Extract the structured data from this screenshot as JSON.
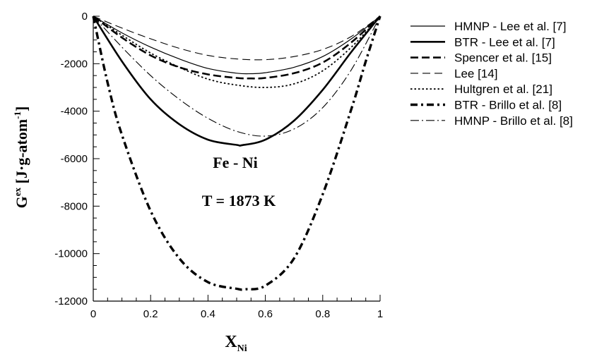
{
  "chart_data": {
    "type": "line",
    "xlabel": {
      "main": "X",
      "sub": "Ni"
    },
    "ylabel": {
      "main": "G",
      "sup": "ex",
      "unit_pre": " [J·g-atom",
      "unit_sup": "-1",
      "unit_post": "]"
    },
    "xlim": [
      0,
      1
    ],
    "ylim": [
      -12000,
      0
    ],
    "xticks": [
      0,
      0.2,
      0.4,
      0.6,
      0.8,
      1
    ],
    "xtick_labels": [
      "0",
      "0.2",
      "0.4",
      "0.6",
      "0.8",
      "1"
    ],
    "yticks": [
      0,
      -2000,
      -4000,
      -6000,
      -8000,
      -10000,
      -12000
    ],
    "ytick_labels": [
      "0",
      "-2000",
      "-4000",
      "-6000",
      "-8000",
      "-10000",
      "-12000"
    ],
    "annotations": [
      "Fe - Ni",
      "T = 1873 K"
    ],
    "legend_position": "right",
    "series": [
      {
        "name": "HMNP - Lee et al. [7]",
        "style": "thin-solid",
        "x": [
          0,
          0.1,
          0.2,
          0.3,
          0.4,
          0.5,
          0.55,
          0.6,
          0.7,
          0.8,
          0.9,
          1
        ],
        "y": [
          0,
          -700,
          -1300,
          -1800,
          -2200,
          -2400,
          -2420,
          -2380,
          -2150,
          -1700,
          -950,
          0
        ]
      },
      {
        "name": "BTR - Lee et al. [7]",
        "style": "thick-solid",
        "x": [
          0,
          0.1,
          0.2,
          0.3,
          0.4,
          0.5,
          0.52,
          0.6,
          0.7,
          0.8,
          0.9,
          1
        ],
        "y": [
          0,
          -1900,
          -3500,
          -4550,
          -5200,
          -5420,
          -5430,
          -5200,
          -4400,
          -3100,
          -1500,
          0
        ]
      },
      {
        "name": "Spencer et al. [15]",
        "style": "thick-dash",
        "x": [
          0,
          0.1,
          0.2,
          0.3,
          0.4,
          0.5,
          0.55,
          0.6,
          0.7,
          0.8,
          0.9,
          1
        ],
        "y": [
          0,
          -900,
          -1650,
          -2150,
          -2450,
          -2600,
          -2620,
          -2600,
          -2400,
          -1950,
          -1100,
          0
        ]
      },
      {
        "name": "Lee [14]",
        "style": "thin-dash",
        "x": [
          0,
          0.1,
          0.2,
          0.3,
          0.4,
          0.5,
          0.6,
          0.7,
          0.8,
          0.9,
          1
        ],
        "y": [
          0,
          -500,
          -950,
          -1350,
          -1650,
          -1800,
          -1830,
          -1700,
          -1400,
          -850,
          0
        ]
      },
      {
        "name": "Hultgren et al. [21]",
        "style": "dotted",
        "x": [
          0,
          0.1,
          0.2,
          0.3,
          0.4,
          0.5,
          0.6,
          0.7,
          0.8,
          0.9,
          1
        ],
        "y": [
          0,
          -800,
          -1550,
          -2150,
          -2650,
          -2900,
          -3000,
          -2850,
          -2300,
          -1300,
          0
        ]
      },
      {
        "name": "BTR - Brillo et al. [8]",
        "style": "thick-dashdot",
        "x": [
          0,
          0.05,
          0.1,
          0.2,
          0.3,
          0.4,
          0.5,
          0.53,
          0.6,
          0.7,
          0.8,
          0.9,
          0.95,
          1
        ],
        "y": [
          0,
          -2800,
          -5000,
          -8200,
          -10200,
          -11200,
          -11480,
          -11500,
          -11350,
          -10200,
          -7500,
          -3900,
          -1900,
          0
        ]
      },
      {
        "name": "HMNP - Brillo et al. [8]",
        "style": "thin-dashdot",
        "x": [
          0,
          0.1,
          0.2,
          0.3,
          0.4,
          0.5,
          0.6,
          0.7,
          0.8,
          0.9,
          1
        ],
        "y": [
          0,
          -1300,
          -2500,
          -3500,
          -4300,
          -4850,
          -5050,
          -4750,
          -3850,
          -2250,
          0
        ]
      }
    ]
  }
}
